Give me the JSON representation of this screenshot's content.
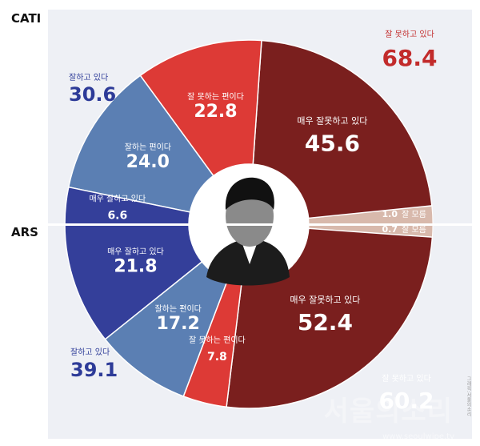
{
  "labels": {
    "cati": "CATI",
    "ars": "ARS"
  },
  "watermark": {
    "main": "서울의소리",
    "sub": "www.seoulwipe.tv"
  },
  "caption_vertical": "그래픽:서울의소리",
  "colors": {
    "background": "#eef0f5",
    "dark_red": "#7a1f1e",
    "red": "#dd3a36",
    "steel_blue": "#5b7fb3",
    "navy": "#343f9a",
    "neutral": "#d8b9ac",
    "title_red": "#c22b2b",
    "title_blue": "#2d3b98"
  },
  "chart_data": [
    {
      "type": "pie",
      "survey": "CATI",
      "slices": [
        {
          "label": "매우 잘못하고 있다",
          "value": 45.6,
          "color": "#7a1f1e"
        },
        {
          "label": "잘 못하는 편이다",
          "value": 22.8,
          "color": "#dd3a36"
        },
        {
          "label": "잘하는 편이다",
          "value": 24.0,
          "color": "#5b7fb3"
        },
        {
          "label": "매우 잘하고 있다",
          "value": 6.6,
          "color": "#343f9a"
        },
        {
          "label": "잘 모름",
          "value": 1.0,
          "color": "#d8b9ac"
        }
      ],
      "totals": [
        {
          "label": "잘 못하고 있다",
          "value": "68.4"
        },
        {
          "label": "잘하고 있다",
          "value": "30.6"
        }
      ]
    },
    {
      "type": "pie",
      "survey": "ARS",
      "slices": [
        {
          "label": "매우 잘못하고 있다",
          "value": 52.4,
          "color": "#7a1f1e"
        },
        {
          "label": "잘 못하는 편이다",
          "value": 7.8,
          "color": "#dd3a36"
        },
        {
          "label": "잘하는 편이다",
          "value": 17.2,
          "color": "#5b7fb3"
        },
        {
          "label": "매우 잘하고 있다",
          "value": 21.8,
          "color": "#343f9a"
        },
        {
          "label": "잘 모름",
          "value": 0.7,
          "color": "#d8b9ac"
        }
      ],
      "totals": [
        {
          "label": "잘 못하고 있다",
          "value": "60.2"
        },
        {
          "label": "잘하고 있다",
          "value": "39.1"
        }
      ]
    }
  ]
}
